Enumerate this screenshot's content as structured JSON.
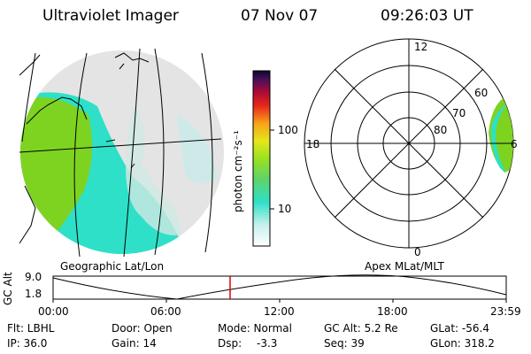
{
  "header": {
    "instrument": "Ultraviolet Imager",
    "date": "07 Nov 07",
    "time": "09:26:03 UT"
  },
  "colorbar": {
    "unit_label": "photon cm⁻²s⁻¹",
    "ticks": [
      "100",
      "10"
    ]
  },
  "polar": {
    "mlt_labels": {
      "top": "12",
      "left": "18",
      "right": "6",
      "bottom": "0"
    },
    "lat_labels": [
      "60",
      "70",
      "80"
    ]
  },
  "map_labels": {
    "left": "Geographic Lat/Lon",
    "right": "Apex MLat/MLT"
  },
  "altitude_plot": {
    "ylabel": "GC Alt",
    "yticks": [
      "9.0",
      "1.8"
    ],
    "xticks": [
      "00:00",
      "06:00",
      "12:00",
      "18:00",
      "23:59"
    ],
    "current_time_marker": "09:26"
  },
  "footer": {
    "filter": "Flt: LBHL",
    "ip": "IP: 36.0",
    "door": "Door: Open",
    "gain": "Gain: 14",
    "mode": "Mode: Normal",
    "dsp_label": "Dsp:",
    "dsp_value": "-3.3",
    "gc_alt": "GC Alt: 5.2 Re",
    "seq": "Seq: 39",
    "glat": "GLat: -56.4",
    "glon": "GLon: 318.2"
  },
  "colors": {
    "emission_green": "#7ed321",
    "emission_cyan": "#2ee0c8",
    "background_gray": "#dcdcdc",
    "marker_red": "#e00000"
  }
}
